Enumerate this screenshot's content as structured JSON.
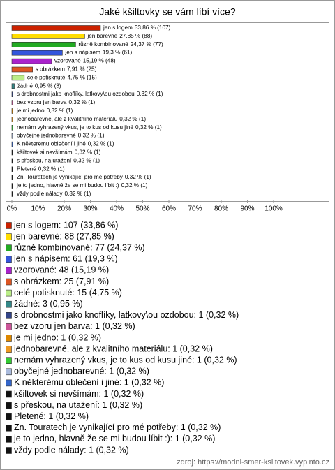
{
  "chart_data": {
    "type": "bar",
    "orientation": "horizontal",
    "title": "Jaké kšiltovky se vám líbí více?",
    "categories": [
      "jen s logem",
      "jen barevné",
      "různě kombinované",
      "jen s nápisem",
      "vzorované",
      "s obrázkem",
      "celé potisknuté",
      "žádné",
      "s drobnostmi jako knoflíky, latkovy\\ou ozdobou",
      "bez vzoru jen barva",
      "je mi jedno",
      "jednobarevné, ale z kvalitního materiálu",
      "nemám vyhrazený vkus, je to kus od kusu jiné",
      "obyčejné jednobarevné",
      "K některému oblečení i jiné",
      "kšiltovek si nevšímám",
      "s přeskou, na utažení",
      "Pletené",
      "Zn. Touratech je vynikající pro mé potřeby",
      "je to jedno, hlavně že se mi budou líbit :)",
      "vždy podle nálady"
    ],
    "values": [
      33.86,
      27.85,
      24.37,
      19.3,
      15.19,
      7.91,
      4.75,
      0.95,
      0.32,
      0.32,
      0.32,
      0.32,
      0.32,
      0.32,
      0.32,
      0.32,
      0.32,
      0.32,
      0.32,
      0.32,
      0.32
    ],
    "value_labels": [
      "33,86 % (107)",
      "27,85 % (88)",
      "24,37 % (77)",
      "19,3 % (61)",
      "15,19 % (48)",
      "7,91 % (25)",
      "4,75 % (15)",
      "0,95 % (3)",
      "0,32 % (1)",
      "0,32 % (1)",
      "0,32 % (1)",
      "0,32 % (1)",
      "0,32 % (1)",
      "0,32 % (1)",
      "0,32 % (1)",
      "0,32 % (1)",
      "0,32 % (1)",
      "0,32 % (1)",
      "0,32 % (1)",
      "0,32 % (1)",
      "0,32 % (1)"
    ],
    "legend_labels": [
      "jen s logem: 107 (33,86 %)",
      "jen barevné: 88 (27,85 %)",
      "různě kombinované: 77 (24,37 %)",
      "jen s nápisem: 61 (19,3 %)",
      "vzorované: 48 (15,19 %)",
      "s obrázkem: 25 (7,91 %)",
      "celé potisknuté: 15 (4,75 %)",
      "žádné: 3 (0,95 %)",
      "s drobnostmi jako knoflíky, latkovy\\ou ozdobou: 1 (0,32 %)",
      "bez vzoru jen barva: 1 (0,32 %)",
      "je mi jedno: 1 (0,32 %)",
      "jednobarevné, ale z kvalitního materiálu: 1 (0,32 %)",
      "nemám vyhrazený vkus, je to kus od kusu jiné: 1 (0,32 %)",
      "obyčejné jednobarevné: 1 (0,32 %)",
      "K některému oblečení i jiné: 1 (0,32 %)",
      "kšiltovek si nevšímám: 1 (0,32 %)",
      "s přeskou, na utažení: 1 (0,32 %)",
      "Pletené: 1 (0,32 %)",
      "Zn. Touratech je vynikající pro mé potřeby: 1 (0,32 %)",
      "je to jedno, hlavně že se mi budou líbit :): 1 (0,32 %)",
      "vždy podle nálady: 1 (0,32 %)"
    ],
    "colors": [
      "#cc2200",
      "#ffdd00",
      "#22aa22",
      "#3355dd",
      "#aa22cc",
      "#dd5522",
      "#bbee88",
      "#338888",
      "#334488",
      "#cc5599",
      "#dd8800",
      "#ee9922",
      "#33cc33",
      "#aabbdd",
      "#3366cc",
      "#111111",
      "#111111",
      "#111111",
      "#111111",
      "#111111",
      "#111111"
    ],
    "xlim": [
      0,
      100
    ],
    "xticks": [
      {
        "value": 0,
        "label": "0%"
      },
      {
        "value": 10,
        "label": "10%"
      },
      {
        "value": 20,
        "label": "20%"
      },
      {
        "value": 30,
        "label": "30%"
      },
      {
        "value": 40,
        "label": "40%"
      },
      {
        "value": 50,
        "label": "50%"
      },
      {
        "value": 60,
        "label": "60%"
      },
      {
        "value": 70,
        "label": "70%"
      },
      {
        "value": 80,
        "label": "80%"
      },
      {
        "value": 90,
        "label": "90%"
      },
      {
        "value": 100,
        "label": "100%"
      }
    ],
    "source": "zdroj: https://modni-smer-ksiltovek.vyplnto.cz"
  }
}
